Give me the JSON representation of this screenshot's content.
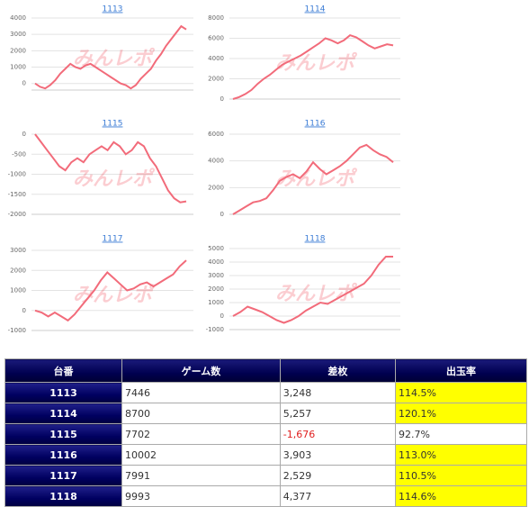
{
  "watermark": "みんレポ",
  "chart_data": [
    {
      "type": "line",
      "title": "1113",
      "color": "#f26b7a",
      "grid": true,
      "ylim": [
        -400,
        4000
      ],
      "yticks": [
        0,
        1000,
        2000,
        3000,
        4000
      ],
      "values": [
        0,
        -200,
        -300,
        -100,
        200,
        600,
        900,
        1200,
        1000,
        900,
        1100,
        1200,
        1000,
        800,
        600,
        400,
        200,
        0,
        -100,
        -300,
        -100,
        300,
        600,
        900,
        1400,
        1800,
        2300,
        2700,
        3100,
        3500,
        3300
      ]
    },
    {
      "type": "line",
      "title": "1114",
      "color": "#f26b7a",
      "grid": true,
      "ylim": [
        0,
        8000
      ],
      "yticks": [
        0,
        2000,
        4000,
        6000,
        8000
      ],
      "values": [
        0,
        200,
        500,
        900,
        1500,
        2000,
        2400,
        2900,
        3400,
        3700,
        4000,
        4300,
        4700,
        5100,
        5500,
        6000,
        5800,
        5500,
        5800,
        6300,
        6100,
        5700,
        5300,
        5000,
        5200,
        5400,
        5300
      ]
    },
    {
      "type": "line",
      "title": "1115",
      "color": "#f26b7a",
      "grid": true,
      "ylim": [
        -2000,
        0
      ],
      "yticks": [
        0,
        -500,
        -1000,
        -1500,
        -2000
      ],
      "values": [
        0,
        -200,
        -400,
        -600,
        -800,
        -900,
        -700,
        -600,
        -700,
        -500,
        -400,
        -300,
        -400,
        -200,
        -300,
        -500,
        -400,
        -200,
        -300,
        -600,
        -800,
        -1100,
        -1400,
        -1600,
        -1700,
        -1676
      ]
    },
    {
      "type": "line",
      "title": "1116",
      "color": "#f26b7a",
      "grid": true,
      "ylim": [
        0,
        6000
      ],
      "yticks": [
        0,
        2000,
        4000,
        6000
      ],
      "values": [
        0,
        300,
        600,
        900,
        1000,
        1200,
        1800,
        2500,
        2800,
        3000,
        2700,
        3200,
        3900,
        3400,
        3000,
        3300,
        3600,
        4000,
        4500,
        5000,
        5200,
        4800,
        4500,
        4300,
        3900
      ]
    },
    {
      "type": "line",
      "title": "1117",
      "color": "#f26b7a",
      "grid": true,
      "ylim": [
        -1000,
        3000
      ],
      "yticks": [
        -1000,
        0,
        1000,
        2000,
        3000
      ],
      "values": [
        0,
        -100,
        -300,
        -100,
        -300,
        -500,
        -200,
        200,
        600,
        1000,
        1500,
        1900,
        1600,
        1300,
        1000,
        1100,
        1300,
        1400,
        1200,
        1400,
        1600,
        1800,
        2200,
        2500
      ]
    },
    {
      "type": "line",
      "title": "1118",
      "color": "#f26b7a",
      "grid": true,
      "ylim": [
        -1000,
        5000
      ],
      "yticks": [
        -1000,
        0,
        1000,
        2000,
        3000,
        4000,
        5000
      ],
      "values": [
        0,
        300,
        700,
        500,
        300,
        0,
        -300,
        -500,
        -300,
        0,
        400,
        700,
        1000,
        900,
        1200,
        1500,
        1800,
        2100,
        2400,
        3000,
        3800,
        4400,
        4400
      ]
    }
  ],
  "table": {
    "header": [
      "台番",
      "ゲーム数",
      "差枚",
      "出玉率"
    ],
    "rows": [
      {
        "unit": "1113",
        "games": "7446",
        "diff": "3,248",
        "rate": "114.5%",
        "rate_bg": "#ffff00"
      },
      {
        "unit": "1114",
        "games": "8700",
        "diff": "5,257",
        "rate": "120.1%",
        "rate_bg": "#ffff00"
      },
      {
        "unit": "1115",
        "games": "7702",
        "diff": "-1,676",
        "diff_color": "#e02020",
        "rate": "92.7%"
      },
      {
        "unit": "1116",
        "games": "10002",
        "diff": "3,903",
        "rate": "113.0%",
        "rate_bg": "#ffff00"
      },
      {
        "unit": "1117",
        "games": "7991",
        "diff": "2,529",
        "rate": "110.5%",
        "rate_bg": "#ffff00"
      },
      {
        "unit": "1118",
        "games": "9993",
        "diff": "4,377",
        "rate": "114.6%",
        "rate_bg": "#ffff00"
      }
    ]
  }
}
